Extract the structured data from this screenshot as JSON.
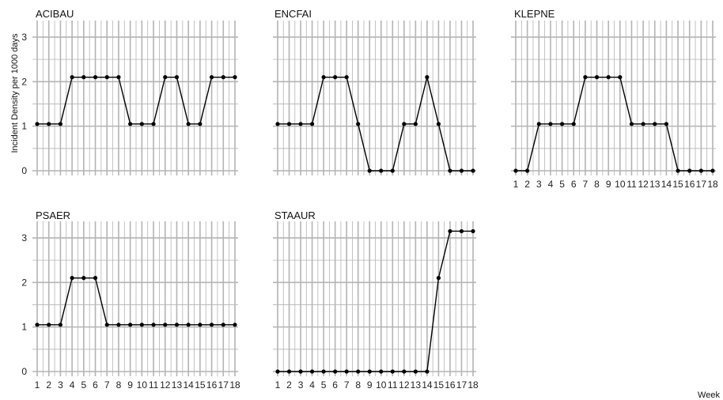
{
  "chart_data": [
    {
      "type": "line",
      "title": "ACIBAU",
      "x": [
        1,
        2,
        3,
        4,
        5,
        6,
        7,
        8,
        9,
        10,
        11,
        12,
        13,
        14,
        15,
        16,
        17,
        18
      ],
      "values": [
        1.05,
        1.05,
        1.05,
        2.1,
        2.1,
        2.1,
        2.1,
        2.1,
        1.05,
        1.05,
        1.05,
        2.1,
        2.1,
        1.05,
        1.05,
        2.1,
        2.1,
        2.1
      ],
      "ylim": [
        0,
        3.3
      ],
      "yticks": [
        0,
        1,
        2,
        3
      ],
      "show_x_ticks": false
    },
    {
      "type": "line",
      "title": "ENCFAI",
      "x": [
        1,
        2,
        3,
        4,
        5,
        6,
        7,
        8,
        9,
        10,
        11,
        12,
        13,
        14,
        15,
        16,
        17,
        18
      ],
      "values": [
        1.05,
        1.05,
        1.05,
        1.05,
        2.1,
        2.1,
        2.1,
        1.05,
        0,
        0,
        0,
        1.05,
        1.05,
        2.1,
        1.05,
        0,
        0,
        0
      ],
      "ylim": [
        0,
        3.3
      ],
      "show_x_ticks": false
    },
    {
      "type": "line",
      "title": "KLEPNE",
      "x": [
        1,
        2,
        3,
        4,
        5,
        6,
        7,
        8,
        9,
        10,
        11,
        12,
        13,
        14,
        15,
        16,
        17,
        18
      ],
      "values": [
        0,
        0,
        1.05,
        1.05,
        1.05,
        1.05,
        2.1,
        2.1,
        2.1,
        2.1,
        1.05,
        1.05,
        1.05,
        1.05,
        0,
        0,
        0,
        0
      ],
      "ylim": [
        0,
        3.3
      ],
      "show_x_ticks": true
    },
    {
      "type": "line",
      "title": "PSAER",
      "x": [
        1,
        2,
        3,
        4,
        5,
        6,
        7,
        8,
        9,
        10,
        11,
        12,
        13,
        14,
        15,
        16,
        17,
        18
      ],
      "values": [
        1.05,
        1.05,
        1.05,
        2.1,
        2.1,
        2.1,
        1.05,
        1.05,
        1.05,
        1.05,
        1.05,
        1.05,
        1.05,
        1.05,
        1.05,
        1.05,
        1.05,
        1.05
      ],
      "ylim": [
        0,
        3.3
      ],
      "yticks": [
        0,
        1,
        2,
        3
      ],
      "show_x_ticks": true
    },
    {
      "type": "line",
      "title": "STAAUR",
      "x": [
        1,
        2,
        3,
        4,
        5,
        6,
        7,
        8,
        9,
        10,
        11,
        12,
        13,
        14,
        15,
        16,
        17,
        18
      ],
      "values": [
        0,
        0,
        0,
        0,
        0,
        0,
        0,
        0,
        0,
        0,
        0,
        0,
        0,
        0,
        2.1,
        3.15,
        3.15,
        3.15
      ],
      "ylim": [
        0,
        3.3
      ],
      "show_x_ticks": true
    }
  ],
  "xticks": [
    "1",
    "2",
    "3",
    "4",
    "5",
    "6",
    "7",
    "8",
    "9",
    "10",
    "11",
    "12",
    "13",
    "14",
    "15",
    "16",
    "17",
    "18"
  ],
  "ylabel": "Incident Density per 1000 days",
  "xlabel": "Week",
  "colors": {
    "line": "#000000",
    "grid": "#b4b4b4",
    "background": "#ffffff"
  },
  "grid": true
}
